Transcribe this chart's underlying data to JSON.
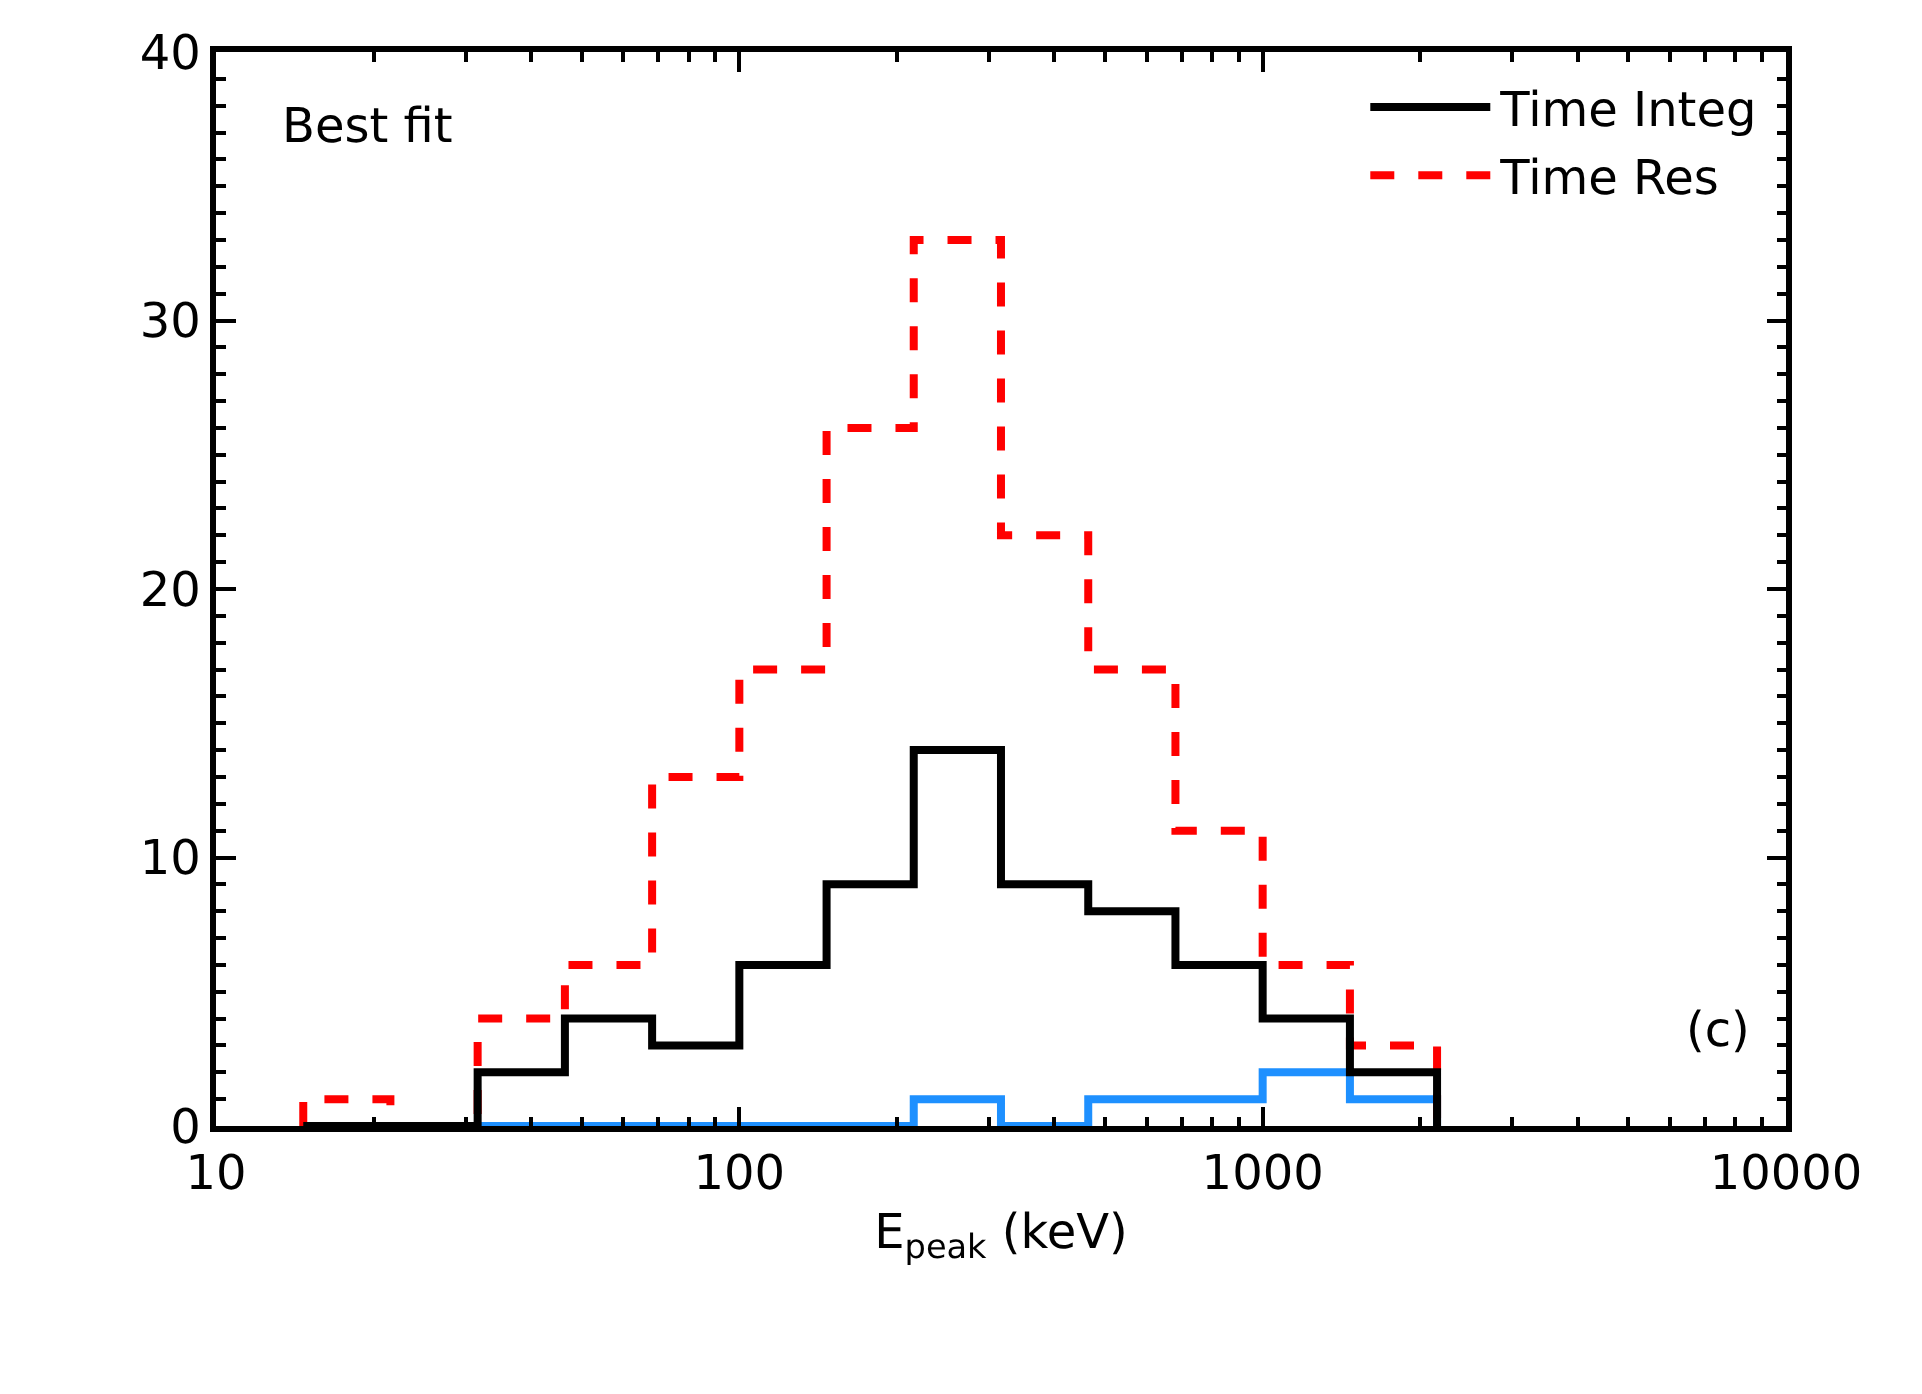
{
  "chart_data": {
    "type": "histogram",
    "xlabel": "E$_{peak}$ (keV)",
    "bins": [
      14.68,
      21.54,
      31.62,
      46.42,
      68.13,
      100,
      146.8,
      215.4,
      316.2,
      464.2,
      681.3,
      1000,
      1468,
      2154
    ],
    "series": [
      {
        "name": "Time Integ",
        "color": "#000000",
        "line_style": "solid",
        "values": [
          0,
          0,
          2,
          4,
          3,
          6,
          9,
          14,
          9,
          8,
          6,
          4,
          2
        ]
      },
      {
        "name": "Time Res",
        "color": "#ff0000",
        "line_style": "dashed",
        "values": [
          1,
          0,
          4,
          6,
          13,
          17,
          26,
          33,
          22,
          17,
          11,
          6,
          3
        ]
      },
      {
        "color": "#1e90ff",
        "line_style": "solid",
        "values": [
          0,
          0,
          0,
          0,
          0,
          0,
          0,
          1,
          0,
          1,
          1,
          2,
          1
        ]
      }
    ],
    "log": "x",
    "xlim": [
      10,
      10000
    ],
    "xticks": [
      10,
      100,
      1000,
      10000
    ],
    "ylim": [
      0,
      40
    ],
    "yticks": [
      0,
      10,
      20,
      30,
      40
    ],
    "legend": "top right",
    "annotations": [
      "Best fit",
      "(c)"
    ]
  }
}
